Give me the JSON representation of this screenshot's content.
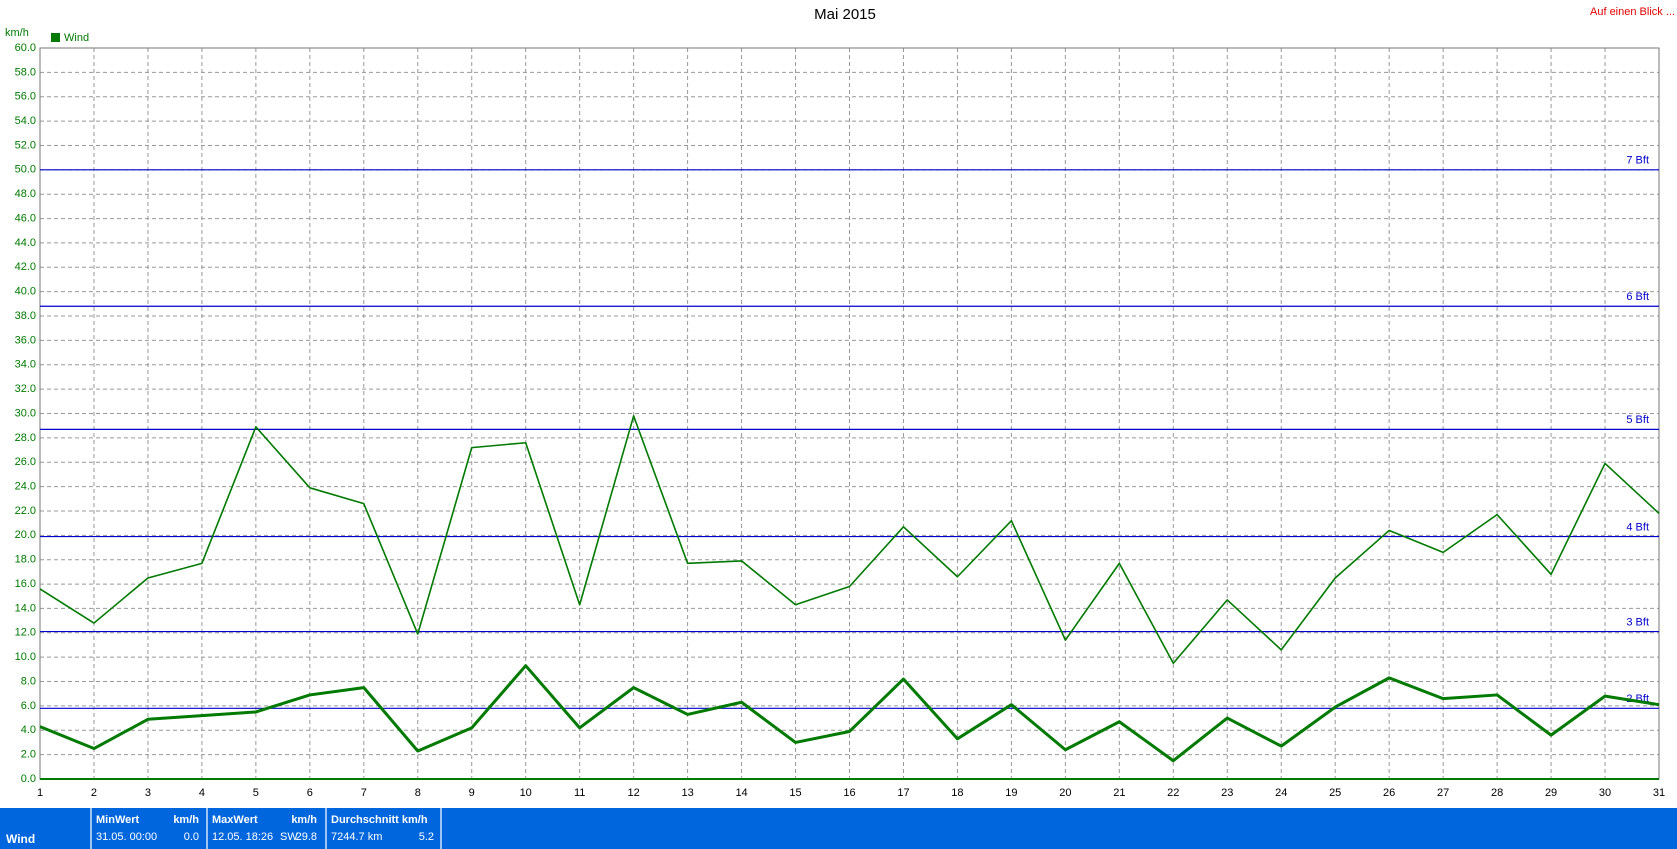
{
  "chart_data": {
    "type": "line",
    "title": "Mai 2015",
    "link": "Auf einen Blick ...",
    "y_unit": "km/h",
    "legend": "top-left",
    "grid": true,
    "x": [
      1,
      2,
      3,
      4,
      5,
      6,
      7,
      8,
      9,
      10,
      11,
      12,
      13,
      14,
      15,
      16,
      17,
      18,
      19,
      20,
      21,
      22,
      23,
      24,
      25,
      26,
      27,
      28,
      29,
      30,
      31
    ],
    "xlim": [
      1,
      31
    ],
    "xticks": [
      1,
      2,
      3,
      4,
      5,
      6,
      7,
      8,
      9,
      10,
      11,
      12,
      13,
      14,
      15,
      16,
      17,
      18,
      19,
      20,
      21,
      22,
      23,
      24,
      25,
      26,
      27,
      28,
      29,
      30,
      31
    ],
    "ylim": [
      0,
      60
    ],
    "yticks": [
      {
        "value": 0,
        "label": "0.0"
      },
      {
        "value": 2,
        "label": "2.0"
      },
      {
        "value": 4,
        "label": "4.0"
      },
      {
        "value": 6,
        "label": "6.0"
      },
      {
        "value": 8,
        "label": "8.0"
      },
      {
        "value": 10,
        "label": "10.0"
      },
      {
        "value": 12,
        "label": "12.0"
      },
      {
        "value": 14,
        "label": "14.0"
      },
      {
        "value": 16,
        "label": "16.0"
      },
      {
        "value": 18,
        "label": "18.0"
      },
      {
        "value": 20,
        "label": "20.0"
      },
      {
        "value": 22,
        "label": "22.0"
      },
      {
        "value": 24,
        "label": "24.0"
      },
      {
        "value": 26,
        "label": "26.0"
      },
      {
        "value": 28,
        "label": "28.0"
      },
      {
        "value": 30,
        "label": "30.0"
      },
      {
        "value": 32,
        "label": "32.0"
      },
      {
        "value": 34,
        "label": "34.0"
      },
      {
        "value": 36,
        "label": "36.0"
      },
      {
        "value": 38,
        "label": "38.0"
      },
      {
        "value": 40,
        "label": "40.0"
      },
      {
        "value": 42,
        "label": "42.0"
      },
      {
        "value": 44,
        "label": "44.0"
      },
      {
        "value": 46,
        "label": "46.0"
      },
      {
        "value": 48,
        "label": "48.0"
      },
      {
        "value": 50,
        "label": "50.0"
      },
      {
        "value": 52,
        "label": "52.0"
      },
      {
        "value": 54,
        "label": "54.0"
      },
      {
        "value": 56,
        "label": "56.0"
      },
      {
        "value": 58,
        "label": "58.0"
      },
      {
        "value": 60,
        "label": "60.0"
      }
    ],
    "reference_lines": [
      {
        "value": 5.8,
        "label": "2 Bft"
      },
      {
        "value": 12.1,
        "label": "3 Bft"
      },
      {
        "value": 19.9,
        "label": "4 Bft"
      },
      {
        "value": 28.7,
        "label": "5 Bft"
      },
      {
        "value": 38.8,
        "label": "6 Bft"
      },
      {
        "value": 50,
        "label": "7 Bft"
      }
    ],
    "reference_color": "#0000cc",
    "series": [
      {
        "name": "Wind",
        "color": "#007a00",
        "width": 3,
        "values": [
          4.3,
          2.5,
          4.9,
          5.2,
          5.5,
          6.9,
          7.5,
          2.3,
          4.2,
          9.3,
          4.2,
          7.5,
          5.3,
          6.3,
          3.0,
          3.9,
          8.2,
          3.3,
          6.1,
          2.4,
          4.7,
          1.5,
          5.0,
          2.7,
          5.9,
          8.3,
          6.6,
          6.9,
          3.6,
          6.8,
          6.1
        ]
      },
      {
        "color": "#007a00",
        "width": 1.6,
        "values": [
          15.6,
          12.8,
          16.5,
          17.7,
          28.9,
          23.9,
          22.6,
          11.9,
          27.2,
          27.6,
          14.3,
          29.8,
          17.7,
          17.9,
          14.3,
          15.8,
          20.7,
          16.6,
          21.2,
          11.4,
          17.7,
          9.5,
          14.7,
          10.6,
          16.5,
          20.4,
          18.6,
          21.7,
          16.8,
          25.9,
          21.8
        ]
      }
    ]
  },
  "footer": {
    "label": "Wind",
    "cells": [
      {
        "title": "MinWert",
        "unit": "km/h",
        "detail": "31.05.  00:00",
        "value": "0.0"
      },
      {
        "title": "MaxWert",
        "unit": "km/h",
        "detail": "12.05.  18:26",
        "extra": "SW",
        "value": "29.8"
      },
      {
        "title": "Durchschnitt km/h",
        "detail": "7244.7 km",
        "value": "5.2"
      }
    ]
  }
}
